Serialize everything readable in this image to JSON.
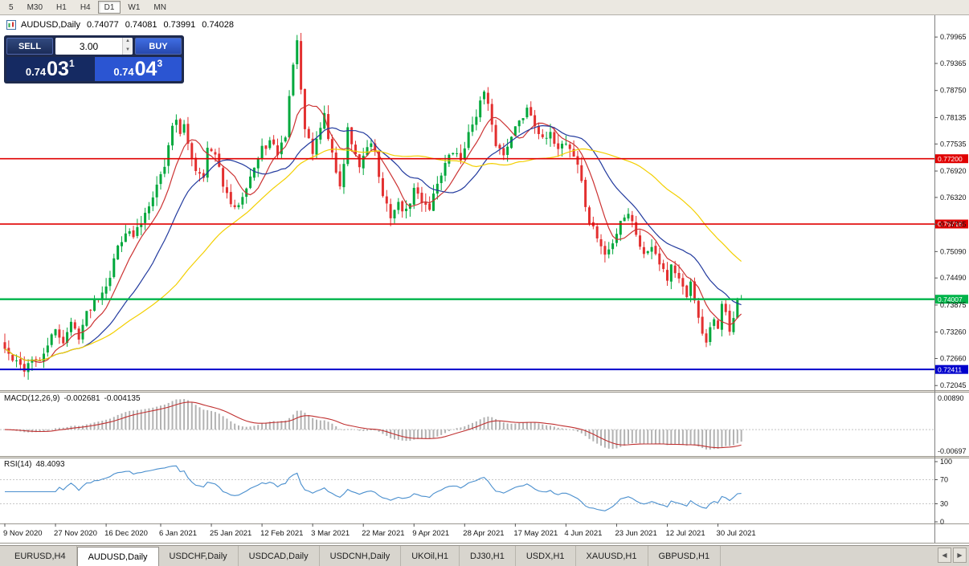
{
  "toolbar": {
    "timeframes": [
      {
        "label": "5",
        "active": false
      },
      {
        "label": "M30",
        "active": false
      },
      {
        "label": "H1",
        "active": false
      },
      {
        "label": "H4",
        "active": false
      },
      {
        "label": "D1",
        "active": true
      },
      {
        "label": "W1",
        "active": false
      },
      {
        "label": "MN",
        "active": false
      }
    ]
  },
  "header": {
    "symbol": "AUDUSD,Daily",
    "open": "0.74077",
    "high": "0.74081",
    "low": "0.73991",
    "close": "0.74028"
  },
  "trade_panel": {
    "sell_label": "SELL",
    "buy_label": "BUY",
    "lot": "3.00",
    "sell_price": {
      "prefix": "0.74",
      "big": "03",
      "sup": "1"
    },
    "buy_price": {
      "prefix": "0.74",
      "big": "04",
      "sup": "3"
    }
  },
  "price_axis": {
    "labels": [
      "0.79965",
      "0.79365",
      "0.78750",
      "0.78135",
      "0.77535",
      "0.76920",
      "0.76320",
      "0.75705",
      "0.75090",
      "0.74490",
      "0.73875",
      "0.73260",
      "0.72660",
      "0.72045"
    ]
  },
  "hlines": [
    {
      "price": 0.772,
      "label": "0.77200",
      "color": "#e00000",
      "width": 1.6
    },
    {
      "price": 0.75716,
      "label": "0.75716",
      "color": "#e00000",
      "width": 1.6
    },
    {
      "price": 0.74007,
      "label": "0.74007",
      "color": "#00b44a",
      "width": 2.4
    },
    {
      "price": 0.72411,
      "label": "0.72411",
      "color": "#0000cc",
      "width": 2
    }
  ],
  "macd": {
    "name": "MACD(12,26,9)",
    "main_value": "-0.002681",
    "signal_value": "-0.004135",
    "axis_top": "0.00890",
    "axis_bottom": "-0.00697"
  },
  "rsi": {
    "name": "RSI(14)",
    "value": "48.4093",
    "axis": [
      "100",
      "70",
      "30",
      "0"
    ],
    "levels": [
      70,
      30
    ]
  },
  "date_axis": [
    {
      "i": 0,
      "label": "9 Nov 2020"
    },
    {
      "i": 13,
      "label": "27 Nov 2020"
    },
    {
      "i": 26,
      "label": "16 Dec 2020"
    },
    {
      "i": 40,
      "label": "6 Jan 2021"
    },
    {
      "i": 53,
      "label": "25 Jan 2021"
    },
    {
      "i": 66,
      "label": "12 Feb 2021"
    },
    {
      "i": 79,
      "label": "3 Mar 2021"
    },
    {
      "i": 92,
      "label": "22 Mar 2021"
    },
    {
      "i": 105,
      "label": "9 Apr 2021"
    },
    {
      "i": 118,
      "label": "28 Apr 2021"
    },
    {
      "i": 131,
      "label": "17 May 2021"
    },
    {
      "i": 144,
      "label": "4 Jun 2021"
    },
    {
      "i": 157,
      "label": "23 Jun 2021"
    },
    {
      "i": 170,
      "label": "12 Jul 2021"
    },
    {
      "i": 183,
      "label": "30 Jul 2021"
    }
  ],
  "tabs": [
    {
      "label": "EURUSD,H4",
      "active": false
    },
    {
      "label": "AUDUSD,Daily",
      "active": true
    },
    {
      "label": "USDCHF,Daily",
      "active": false
    },
    {
      "label": "USDCAD,Daily",
      "active": false
    },
    {
      "label": "USDCNH,Daily",
      "active": false
    },
    {
      "label": "UKOil,H1",
      "active": false
    },
    {
      "label": "DJ30,H1",
      "active": false
    },
    {
      "label": "USDX,H1",
      "active": false
    },
    {
      "label": "XAUUSD,H1",
      "active": false
    },
    {
      "label": "GBPUSD,H1",
      "active": false
    }
  ],
  "icons": {
    "scroll_left": "◀",
    "scroll_right": "▶",
    "spin_up": "▲",
    "spin_down": "▼"
  },
  "chart_data": {
    "type": "candlestick",
    "symbol": "AUDUSD",
    "timeframe": "Daily",
    "title": "AUDUSD,Daily",
    "bars": 190,
    "last_close": 0.74028,
    "price_range": [
      0.7194,
      0.8046
    ],
    "colors": {
      "up": "#00a83c",
      "down": "#e33030"
    },
    "ma": [
      {
        "period": 8,
        "color": "#cc3333"
      },
      {
        "period": 20,
        "color": "#223a9e"
      },
      {
        "period": 45,
        "color": "#f3cf00"
      }
    ],
    "indicators": [
      {
        "name": "MACD",
        "params": [
          12,
          26,
          9
        ],
        "current": [
          -0.002681,
          -0.004135
        ]
      },
      {
        "name": "RSI",
        "params": [
          14
        ],
        "current": 48.4093
      }
    ],
    "noise_seed": 42,
    "noise_amp": 0.0009,
    "waypoints": [
      [
        0,
        0.7288
      ],
      [
        2,
        0.7262
      ],
      [
        5,
        0.7242
      ],
      [
        7,
        0.7268
      ],
      [
        9,
        0.7255
      ],
      [
        11,
        0.73
      ],
      [
        13,
        0.7328
      ],
      [
        15,
        0.7306
      ],
      [
        17,
        0.7346
      ],
      [
        19,
        0.7318
      ],
      [
        21,
        0.7368
      ],
      [
        23,
        0.7398
      ],
      [
        25,
        0.742
      ],
      [
        27,
        0.7455
      ],
      [
        29,
        0.7522
      ],
      [
        31,
        0.7556
      ],
      [
        33,
        0.7542
      ],
      [
        35,
        0.7576
      ],
      [
        37,
        0.762
      ],
      [
        39,
        0.766
      ],
      [
        41,
        0.7706
      ],
      [
        42,
        0.7748
      ],
      [
        43,
        0.78
      ],
      [
        44,
        0.7812
      ],
      [
        45,
        0.7772
      ],
      [
        46,
        0.7792
      ],
      [
        47,
        0.7754
      ],
      [
        49,
        0.7696
      ],
      [
        51,
        0.7684
      ],
      [
        52,
        0.7742
      ],
      [
        54,
        0.7726
      ],
      [
        55,
        0.7694
      ],
      [
        57,
        0.7634
      ],
      [
        59,
        0.7602
      ],
      [
        61,
        0.764
      ],
      [
        63,
        0.7682
      ],
      [
        65,
        0.7718
      ],
      [
        66,
        0.7742
      ],
      [
        68,
        0.7758
      ],
      [
        70,
        0.7732
      ],
      [
        72,
        0.7774
      ],
      [
        73,
        0.7862
      ],
      [
        74,
        0.7928
      ],
      [
        75,
        0.7996
      ],
      [
        76,
        0.7868
      ],
      [
        77,
        0.7786
      ],
      [
        79,
        0.7732
      ],
      [
        80,
        0.7764
      ],
      [
        82,
        0.7822
      ],
      [
        83,
        0.7768
      ],
      [
        85,
        0.7692
      ],
      [
        86,
        0.7658
      ],
      [
        87,
        0.7702
      ],
      [
        88,
        0.7788
      ],
      [
        89,
        0.7744
      ],
      [
        91,
        0.7702
      ],
      [
        93,
        0.775
      ],
      [
        94,
        0.7762
      ],
      [
        95,
        0.7732
      ],
      [
        96,
        0.7682
      ],
      [
        97,
        0.763
      ],
      [
        99,
        0.7592
      ],
      [
        101,
        0.7616
      ],
      [
        103,
        0.7598
      ],
      [
        105,
        0.765
      ],
      [
        107,
        0.7624
      ],
      [
        109,
        0.761
      ],
      [
        111,
        0.7666
      ],
      [
        113,
        0.7708
      ],
      [
        115,
        0.7736
      ],
      [
        117,
        0.7718
      ],
      [
        118,
        0.775
      ],
      [
        119,
        0.7774
      ],
      [
        120,
        0.78
      ],
      [
        122,
        0.7848
      ],
      [
        123,
        0.787
      ],
      [
        124,
        0.7838
      ],
      [
        125,
        0.779
      ],
      [
        126,
        0.7754
      ],
      [
        128,
        0.7728
      ],
      [
        130,
        0.7778
      ],
      [
        131,
        0.779
      ],
      [
        133,
        0.7816
      ],
      [
        134,
        0.784
      ],
      [
        136,
        0.7802
      ],
      [
        138,
        0.776
      ],
      [
        140,
        0.7772
      ],
      [
        142,
        0.7748
      ],
      [
        144,
        0.7758
      ],
      [
        145,
        0.7744
      ],
      [
        147,
        0.7708
      ],
      [
        148,
        0.7666
      ],
      [
        149,
        0.7612
      ],
      [
        150,
        0.7576
      ],
      [
        152,
        0.7542
      ],
      [
        154,
        0.75
      ],
      [
        156,
        0.7526
      ],
      [
        158,
        0.7582
      ],
      [
        160,
        0.7598
      ],
      [
        162,
        0.7552
      ],
      [
        164,
        0.75
      ],
      [
        166,
        0.7526
      ],
      [
        168,
        0.7488
      ],
      [
        170,
        0.7448
      ],
      [
        171,
        0.748
      ],
      [
        173,
        0.7444
      ],
      [
        175,
        0.74
      ],
      [
        176,
        0.7442
      ],
      [
        177,
        0.7404
      ],
      [
        178,
        0.7352
      ],
      [
        179,
        0.7322
      ],
      [
        180,
        0.7296
      ],
      [
        181,
        0.733
      ],
      [
        182,
        0.7356
      ],
      [
        183,
        0.734
      ],
      [
        184,
        0.7388
      ],
      [
        185,
        0.7366
      ],
      [
        186,
        0.7332
      ],
      [
        187,
        0.736
      ],
      [
        188,
        0.7398
      ],
      [
        189,
        0.74028
      ]
    ]
  }
}
